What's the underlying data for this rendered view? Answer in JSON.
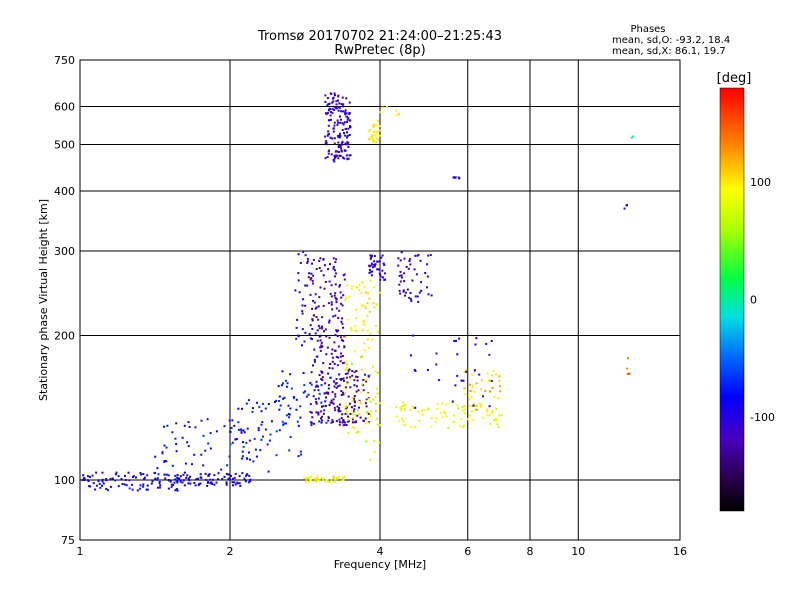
{
  "chart_data": {
    "type": "scatter",
    "title": "Tromsø 20170702 21:24:00–21:25:43",
    "subtitle": "RwPretec (8p)",
    "xlabel": "Frequency [MHz]",
    "ylabel": "Stationary phase Virtual Height [km]",
    "x_scale": "log",
    "y_scale": "log",
    "xlim": [
      1,
      16
    ],
    "ylim": [
      75,
      750
    ],
    "x_ticks": [
      1,
      2,
      4,
      6,
      8,
      10,
      16
    ],
    "y_ticks": [
      75,
      100,
      200,
      300,
      400,
      500,
      600,
      750
    ],
    "grid": true,
    "phase_box": {
      "title": "Phases",
      "line_o": "mean, sd,O: -93.2, 18.4",
      "line_x": "mean, sd,X:  86.1, 19.7"
    },
    "colorbar": {
      "label": "[deg]",
      "range": [
        -180,
        180
      ],
      "ticks": [
        -100,
        0,
        100
      ],
      "colormap": "rainbow"
    },
    "series": [
      {
        "clusters": [
          {
            "x": [
              1.0,
              1.6
            ],
            "y": [
              95,
              104
            ],
            "c": [
              -110,
              -70
            ],
            "n": 90
          },
          {
            "x": [
              1.5,
              2.2
            ],
            "y": [
              97,
              103
            ],
            "c": [
              -110,
              -80
            ],
            "n": 80
          },
          {
            "x": [
              1.4,
              2.4
            ],
            "y": [
              100,
              135
            ],
            "c": [
              -110,
              -70
            ],
            "n": 70
          },
          {
            "x": [
              2.0,
              2.8
            ],
            "y": [
              110,
              150
            ],
            "c": [
              -90,
              -60
            ],
            "n": 60
          },
          {
            "x": [
              2.5,
              3.2
            ],
            "y": [
              130,
              170
            ],
            "c": [
              -90,
              -60
            ],
            "n": 50
          },
          {
            "x": [
              2.9,
              3.4
            ],
            "y": [
              130,
              290
            ],
            "c": [
              -140,
              -100
            ],
            "n": 220
          },
          {
            "x": [
              2.7,
              3.0
            ],
            "y": [
              190,
              300
            ],
            "c": [
              -110,
              -90
            ],
            "n": 40
          },
          {
            "x": [
              3.1,
              3.5
            ],
            "y": [
              460,
              640
            ],
            "c": [
              -120,
              -90
            ],
            "n": 160
          },
          {
            "x": [
              3.3,
              3.8
            ],
            "y": [
              130,
              170
            ],
            "c": [
              -140,
              -100
            ],
            "n": 80
          },
          {
            "x": [
              3.8,
              4.1
            ],
            "y": [
              260,
              295
            ],
            "c": [
              -120,
              -90
            ],
            "n": 40
          },
          {
            "x": [
              4.3,
              5.1
            ],
            "y": [
              235,
              300
            ],
            "c": [
              -120,
              -90
            ],
            "n": 50
          },
          {
            "x": [
              3.4,
              4.0
            ],
            "y": [
              125,
              260
            ],
            "c": [
              80,
              110
            ],
            "n": 100
          },
          {
            "x": [
              3.4,
              4.0
            ],
            "y": [
              110,
              185
            ],
            "c": [
              50,
              90
            ],
            "n": 25
          },
          {
            "x": [
              3.8,
              4.0
            ],
            "y": [
              505,
              560
            ],
            "c": [
              90,
              110
            ],
            "n": 30
          },
          {
            "x": [
              4.0,
              4.4
            ],
            "y": [
              570,
              600
            ],
            "c": [
              90,
              110
            ],
            "n": 6
          },
          {
            "x": [
              2.8,
              3.4
            ],
            "y": [
              99,
              102
            ],
            "c": [
              70,
              110
            ],
            "n": 40
          },
          {
            "x": [
              4.3,
              7.2
            ],
            "y": [
              128,
              145
            ],
            "c": [
              70,
              100
            ],
            "n": 80
          },
          {
            "x": [
              5.8,
              7.0
            ],
            "y": [
              140,
              170
            ],
            "c": [
              90,
              130
            ],
            "n": 40
          },
          {
            "x": [
              4.6,
              6.8
            ],
            "y": [
              140,
              200
            ],
            "c": [
              -110,
              -80
            ],
            "n": 30
          },
          {
            "x": [
              5.6,
              5.8
            ],
            "y": [
              425,
              428
            ],
            "c": [
              -110,
              -100
            ],
            "n": 6
          },
          {
            "x": [
              12.3,
              12.6
            ],
            "y": [
              360,
              380
            ],
            "c": [
              -110,
              -100
            ],
            "n": 3
          },
          {
            "x": [
              12.8,
              13.0
            ],
            "y": [
              515,
              520
            ],
            "c": [
              -10,
              10
            ],
            "n": 2
          },
          {
            "x": [
              12.5,
              12.8
            ],
            "y": [
              150,
              180
            ],
            "c": [
              130,
              160
            ],
            "n": 4
          }
        ]
      }
    ]
  }
}
